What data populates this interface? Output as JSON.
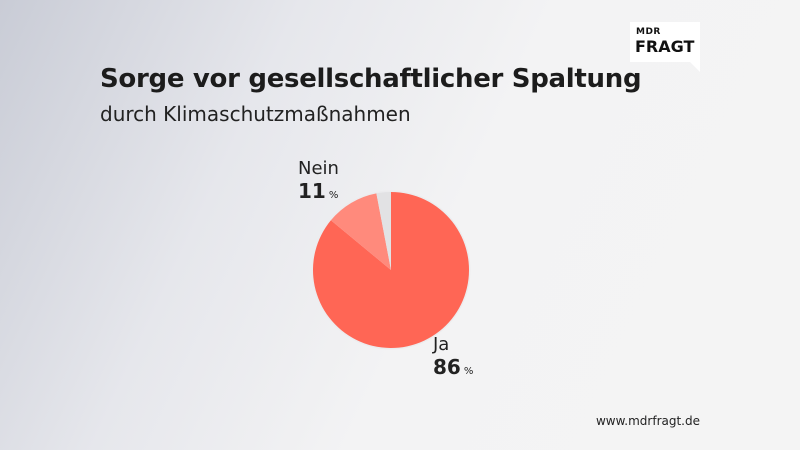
{
  "logo": {
    "line1": "MDR",
    "line2": "FRAGT"
  },
  "title": "Sorge vor gesellschaftlicher Spaltung",
  "subtitle": "durch Klimaschutzmaßnahmen",
  "chart_data": {
    "type": "pie",
    "title": "Sorge vor gesellschaftlicher Spaltung",
    "subtitle": "durch Klimaschutzmaßnahmen",
    "unit": "%",
    "slices": [
      {
        "label": "Ja",
        "value": 86,
        "color": "#ff6655"
      },
      {
        "label": "Nein",
        "value": 11,
        "color": "#ff8a7c"
      },
      {
        "label": "",
        "value": 3,
        "color": "#e2e2e4"
      }
    ]
  },
  "footer": "www.mdrfragt.de"
}
